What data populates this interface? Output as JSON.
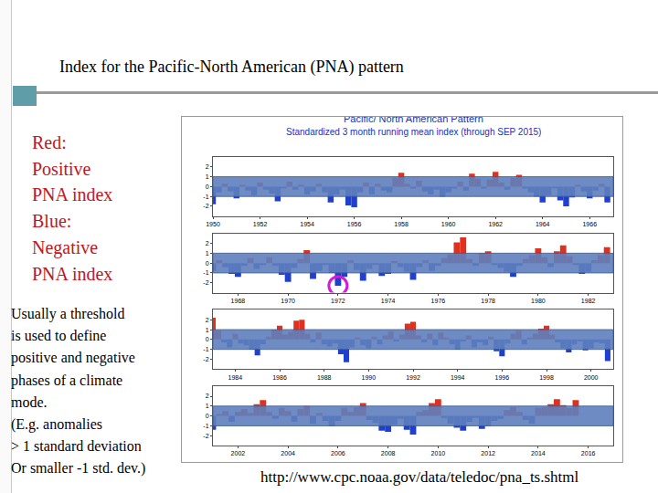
{
  "slide": {
    "title": "Index for the Pacific-North American (PNA) pattern",
    "legend_lines": [
      "Red:",
      "Positive",
      "PNA index",
      "Blue:",
      "Negative",
      "PNA index"
    ],
    "note_lines": [
      "Usually a threshold",
      "is used to define",
      "positive and negative",
      "phases of a climate",
      "mode.",
      "(E.g. anomalies",
      "> 1 standard deviation",
      "Or smaller -1 std. dev.)"
    ],
    "source": "http://www.cpc.noaa.gov/data/teledoc/pna_ts.shtml"
  },
  "chart_data": {
    "type": "bar",
    "title": "Pacific/ North American Pattern",
    "subtitle": "Standardized 3 month running mean index (through SEP 2015)",
    "color": {
      "positive": "#e0301e",
      "negative": "#1f3fd0"
    },
    "ylim": [
      -3,
      3
    ],
    "yticks": [
      -2,
      -1,
      0,
      1,
      2
    ],
    "band": [
      -1,
      1
    ],
    "panels": [
      {
        "xlim": [
          1950,
          1967
        ],
        "xticks": [
          1950,
          1952,
          1954,
          1956,
          1958,
          1960,
          1962,
          1964,
          1966
        ],
        "x": [
          1950,
          1950.25,
          1950.5,
          1950.75,
          1951,
          1951.25,
          1951.5,
          1951.75,
          1952,
          1952.25,
          1952.5,
          1952.75,
          1953,
          1953.25,
          1953.5,
          1953.75,
          1954,
          1954.25,
          1954.5,
          1954.75,
          1955,
          1955.25,
          1955.5,
          1955.75,
          1956,
          1956.25,
          1956.5,
          1956.75,
          1957,
          1957.25,
          1957.5,
          1957.75,
          1958,
          1958.25,
          1958.5,
          1958.75,
          1959,
          1959.25,
          1959.5,
          1959.75,
          1960,
          1960.25,
          1960.5,
          1960.75,
          1961,
          1961.25,
          1961.5,
          1961.75,
          1962,
          1962.25,
          1962.5,
          1962.75,
          1963,
          1963.25,
          1963.5,
          1963.75,
          1964,
          1964.25,
          1964.5,
          1964.75,
          1965,
          1965.25,
          1965.5,
          1965.75,
          1966,
          1966.25,
          1966.5,
          1966.75
        ],
        "values": [
          -1.8,
          -0.6,
          0.3,
          -0.5,
          -1.2,
          0.2,
          -0.4,
          -0.9,
          0.4,
          -0.3,
          -0.7,
          -1.5,
          -0.2,
          0.5,
          -0.3,
          0.2,
          -0.8,
          -0.5,
          0.3,
          -0.6,
          -1.6,
          -0.8,
          -0.3,
          -1.9,
          -2.1,
          -0.6,
          0.4,
          -0.8,
          0.3,
          -0.4,
          -0.6,
          0.9,
          1.4,
          0.3,
          -0.2,
          0.6,
          -0.5,
          -0.8,
          -0.3,
          -1.0,
          -0.6,
          -0.2,
          0.5,
          -0.4,
          1.3,
          0.8,
          -0.2,
          0.7,
          1.5,
          0.4,
          -0.3,
          0.9,
          1.2,
          -0.2,
          -0.6,
          -1.0,
          -1.6,
          -0.9,
          -0.2,
          -1.4,
          -2.0,
          -1.1,
          0.2,
          -0.5,
          -1.2,
          -0.4,
          0.3,
          -1.6
        ]
      },
      {
        "xlim": [
          1967,
          1983
        ],
        "xticks": [
          1968,
          1970,
          1972,
          1974,
          1976,
          1978,
          1980,
          1982
        ],
        "x": [
          1967,
          1967.25,
          1967.5,
          1967.75,
          1968,
          1968.25,
          1968.5,
          1968.75,
          1969,
          1969.25,
          1969.5,
          1969.75,
          1970,
          1970.25,
          1970.5,
          1970.75,
          1971,
          1971.25,
          1971.5,
          1971.75,
          1972,
          1972.25,
          1972.5,
          1972.75,
          1973,
          1973.25,
          1973.5,
          1973.75,
          1974,
          1974.25,
          1974.5,
          1974.75,
          1975,
          1975.25,
          1975.5,
          1975.75,
          1976,
          1976.25,
          1976.5,
          1976.75,
          1977,
          1977.25,
          1977.5,
          1977.75,
          1978,
          1978.25,
          1978.5,
          1978.75,
          1979,
          1979.25,
          1979.5,
          1979.75,
          1980,
          1980.25,
          1980.5,
          1980.75,
          1981,
          1981.25,
          1981.5,
          1981.75,
          1982,
          1982.25,
          1982.5,
          1982.75
        ],
        "values": [
          -0.8,
          0.3,
          -0.4,
          -1.1,
          -1.4,
          -0.3,
          0.5,
          -0.6,
          -0.2,
          0.6,
          -0.3,
          -1.2,
          -1.9,
          -0.5,
          0.4,
          1.3,
          -1.6,
          -0.8,
          -0.2,
          -1.0,
          -2.3,
          -1.4,
          0.3,
          -0.7,
          -1.8,
          -0.6,
          -0.2,
          -1.3,
          -1.1,
          0.2,
          -0.4,
          -0.9,
          -1.7,
          -0.4,
          0.3,
          -0.8,
          -0.3,
          0.5,
          0.9,
          2.1,
          2.6,
          0.4,
          -0.3,
          1.0,
          1.2,
          -0.2,
          -0.5,
          -0.9,
          -1.4,
          -0.3,
          0.4,
          0.8,
          1.5,
          0.6,
          -0.4,
          1.2,
          1.8,
          0.7,
          -0.2,
          -1.1,
          -0.9,
          0.3,
          0.8,
          1.6
        ],
        "highlight": {
          "x": 1972,
          "y": -2.3
        }
      },
      {
        "xlim": [
          1983,
          2001
        ],
        "xticks": [
          1984,
          1986,
          1988,
          1990,
          1992,
          1994,
          1996,
          1998,
          2000
        ],
        "x": [
          1983,
          1983.25,
          1983.5,
          1983.75,
          1984,
          1984.25,
          1984.5,
          1984.75,
          1985,
          1985.25,
          1985.5,
          1985.75,
          1986,
          1986.25,
          1986.5,
          1986.75,
          1987,
          1987.25,
          1987.5,
          1987.75,
          1988,
          1988.25,
          1988.5,
          1988.75,
          1989,
          1989.25,
          1989.5,
          1989.75,
          1990,
          1990.25,
          1990.5,
          1990.75,
          1991,
          1991.25,
          1991.5,
          1991.75,
          1992,
          1992.25,
          1992.5,
          1992.75,
          1993,
          1993.25,
          1993.5,
          1993.75,
          1994,
          1994.25,
          1994.5,
          1994.75,
          1995,
          1995.25,
          1995.5,
          1995.75,
          1996,
          1996.25,
          1996.5,
          1996.75,
          1997,
          1997.25,
          1997.5,
          1997.75,
          1998,
          1998.25,
          1998.5,
          1998.75,
          1999,
          1999.25,
          1999.5,
          1999.75,
          2000,
          2000.25,
          2000.5,
          2000.75
        ],
        "values": [
          2.2,
          0.9,
          -0.3,
          -0.8,
          0.6,
          -0.4,
          -0.6,
          -1.0,
          -1.6,
          -0.5,
          0.3,
          1.0,
          1.4,
          0.5,
          0.8,
          1.9,
          2.0,
          0.6,
          -0.3,
          0.7,
          -0.5,
          -0.7,
          -0.4,
          -1.5,
          -2.3,
          -0.8,
          0.2,
          -0.6,
          -0.9,
          0.3,
          -0.5,
          0.4,
          0.8,
          -0.2,
          0.5,
          1.6,
          1.8,
          0.4,
          -0.3,
          0.6,
          -0.6,
          0.7,
          0.2,
          -0.5,
          -1.0,
          -0.2,
          0.4,
          -0.8,
          -0.3,
          -0.6,
          0.3,
          -1.2,
          -1.7,
          -0.4,
          0.6,
          0.9,
          -0.5,
          0.2,
          0.6,
          1.1,
          1.4,
          0.5,
          -0.3,
          -0.9,
          -1.3,
          -0.5,
          -0.2,
          -1.1,
          -0.9,
          -0.3,
          -0.4,
          -2.2
        ]
      },
      {
        "xlim": [
          2001,
          2017
        ],
        "xticks": [
          2002,
          2004,
          2006,
          2008,
          2010,
          2012,
          2014,
          2016
        ],
        "x": [
          2001,
          2001.25,
          2001.5,
          2001.75,
          2002,
          2002.25,
          2002.5,
          2002.75,
          2003,
          2003.25,
          2003.5,
          2003.75,
          2004,
          2004.25,
          2004.5,
          2004.75,
          2005,
          2005.25,
          2005.5,
          2005.75,
          2006,
          2006.25,
          2006.5,
          2006.75,
          2007,
          2007.25,
          2007.5,
          2007.75,
          2008,
          2008.25,
          2008.5,
          2008.75,
          2009,
          2009.25,
          2009.5,
          2009.75,
          2010,
          2010.25,
          2010.5,
          2010.75,
          2011,
          2011.25,
          2011.5,
          2011.75,
          2012,
          2012.25,
          2012.5,
          2012.75,
          2013,
          2013.25,
          2013.5,
          2013.75,
          2014,
          2014.25,
          2014.5,
          2014.75,
          2015,
          2015.25,
          2015.5
        ],
        "values": [
          -1.4,
          0.2,
          0.5,
          -0.6,
          0.4,
          0.7,
          0.3,
          1.2,
          1.6,
          0.4,
          -0.3,
          0.8,
          0.5,
          -0.6,
          0.7,
          1.0,
          -0.8,
          0.3,
          -0.5,
          -1.0,
          -0.5,
          0.8,
          0.4,
          0.9,
          1.3,
          -0.4,
          -0.7,
          -1.5,
          -1.6,
          -0.9,
          -0.3,
          -1.4,
          -1.9,
          0.4,
          0.6,
          1.3,
          1.7,
          -0.2,
          -0.8,
          -1.2,
          -1.5,
          -0.6,
          -0.2,
          -1.3,
          -1.0,
          -0.5,
          -0.3,
          0.6,
          0.9,
          0.4,
          -0.4,
          -0.8,
          0.8,
          0.9,
          1.2,
          1.7,
          1.1,
          0.8,
          1.6
        ]
      }
    ]
  }
}
